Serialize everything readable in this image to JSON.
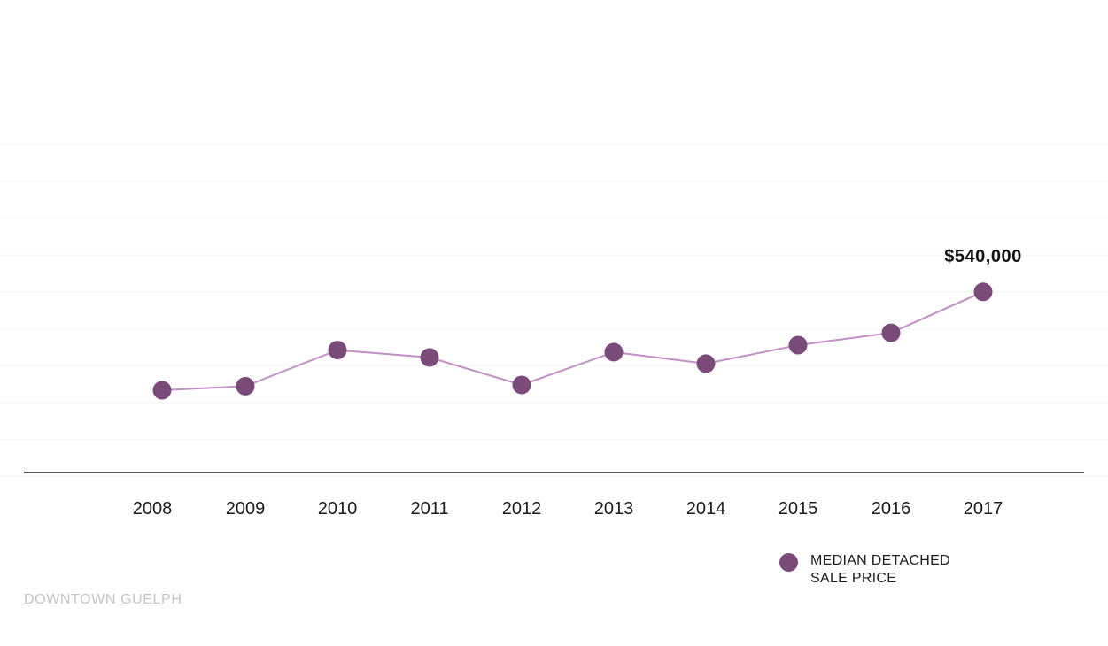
{
  "chart_data": {
    "type": "line",
    "categories": [
      "2008",
      "2009",
      "2010",
      "2011",
      "2012",
      "2013",
      "2014",
      "2015",
      "2016",
      "2017"
    ],
    "series": [
      {
        "name": "MEDIAN DETACHED SALE PRICE",
        "values": [
          300000,
          310000,
          398000,
          380000,
          313000,
          393000,
          365000,
          410000,
          440000,
          540000
        ]
      }
    ],
    "annotations": [
      {
        "category": "2017",
        "text": "$540,000"
      }
    ],
    "legend": {
      "position": "bottom-right",
      "lines": [
        "MEDIAN DETACHED",
        "SALE PRICE"
      ]
    },
    "source_label": "DOWNTOWN GUELPH",
    "ylim": [
      90000,
      980000
    ],
    "ygrid": [
      90000,
      180000,
      270000,
      360000,
      450000,
      540000,
      630000,
      720000,
      810000,
      900000
    ],
    "grid": true,
    "colors": {
      "line": "#c28fc6",
      "marker": "#7a4a78",
      "grid": "#f4f4f4",
      "axis": "#222222"
    }
  }
}
